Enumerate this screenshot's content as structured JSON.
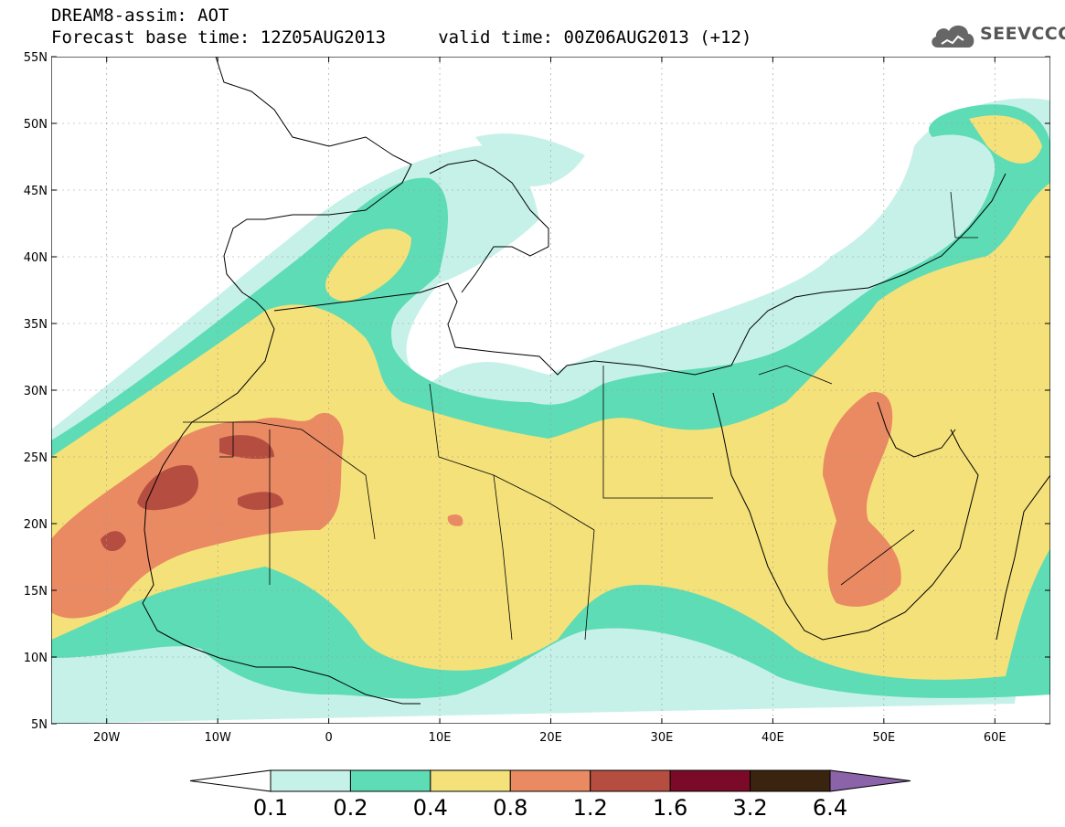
{
  "title": {
    "line1": "DREAM8-assim: AOT",
    "line2": "Forecast base time: 12Z05AUG2013     valid time: 00Z06AUG2013 (+12)"
  },
  "logo": {
    "text": "SEEVCCC",
    "icon": "cloud-icon"
  },
  "map": {
    "lon_range": [
      -25,
      65
    ],
    "lat_range": [
      5,
      55
    ],
    "lon_ticks": [
      {
        "value": -20,
        "label": "20W"
      },
      {
        "value": -10,
        "label": "10W"
      },
      {
        "value": 0,
        "label": "0"
      },
      {
        "value": 10,
        "label": "10E"
      },
      {
        "value": 20,
        "label": "20E"
      },
      {
        "value": 30,
        "label": "30E"
      },
      {
        "value": 40,
        "label": "40E"
      },
      {
        "value": 50,
        "label": "50E"
      },
      {
        "value": 60,
        "label": "60E"
      }
    ],
    "lat_ticks": [
      {
        "value": 5,
        "label": "5N"
      },
      {
        "value": 10,
        "label": "10N"
      },
      {
        "value": 15,
        "label": "15N"
      },
      {
        "value": 20,
        "label": "20N"
      },
      {
        "value": 25,
        "label": "25N"
      },
      {
        "value": 30,
        "label": "30N"
      },
      {
        "value": 35,
        "label": "35N"
      },
      {
        "value": 40,
        "label": "40N"
      },
      {
        "value": 45,
        "label": "45N"
      },
      {
        "value": 50,
        "label": "50N"
      },
      {
        "value": 55,
        "label": "55N"
      }
    ],
    "gridlines": true
  },
  "colorbar": {
    "colors": [
      "#ffffff",
      "#c6f1e9",
      "#5edcb5",
      "#f5e17a",
      "#ea8a63",
      "#b54e40",
      "#7a0a28",
      "#3a2410",
      "#8a63a8"
    ],
    "labels": [
      "0.1",
      "0.2",
      "0.4",
      "0.8",
      "1.2",
      "1.6",
      "3.2",
      "6.4"
    ]
  }
}
